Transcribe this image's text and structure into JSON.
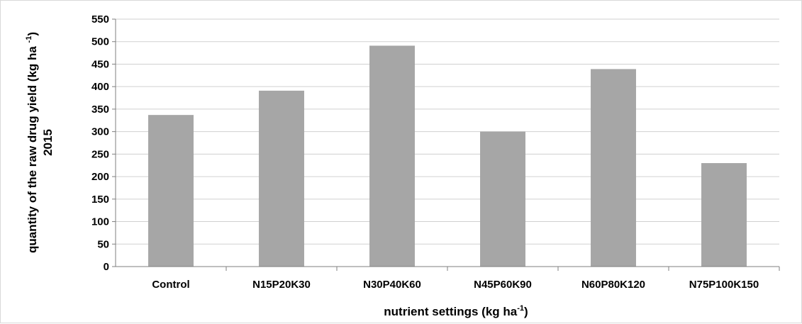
{
  "chart_data": {
    "type": "bar",
    "categories": [
      "Control",
      "N15P20K30",
      "N30P40K60",
      "N45P60K90",
      "N60P80K120",
      "N75P100K150"
    ],
    "values": [
      337,
      391,
      491,
      300,
      439,
      230
    ],
    "ylim": [
      0,
      550
    ],
    "ytick_step": 50,
    "grid": true,
    "bar_color": "#a6a6a6",
    "grid_color": "#d0d0d0",
    "xlabel": {
      "main": "nutrient settings (kg ha",
      "sup": "-1",
      "end": ")"
    },
    "ylabel": {
      "line1_main": "quantity of the raw drug yield (kg ha ",
      "line1_sup": "-1",
      "line1_end": ")",
      "line2": "2015"
    }
  }
}
